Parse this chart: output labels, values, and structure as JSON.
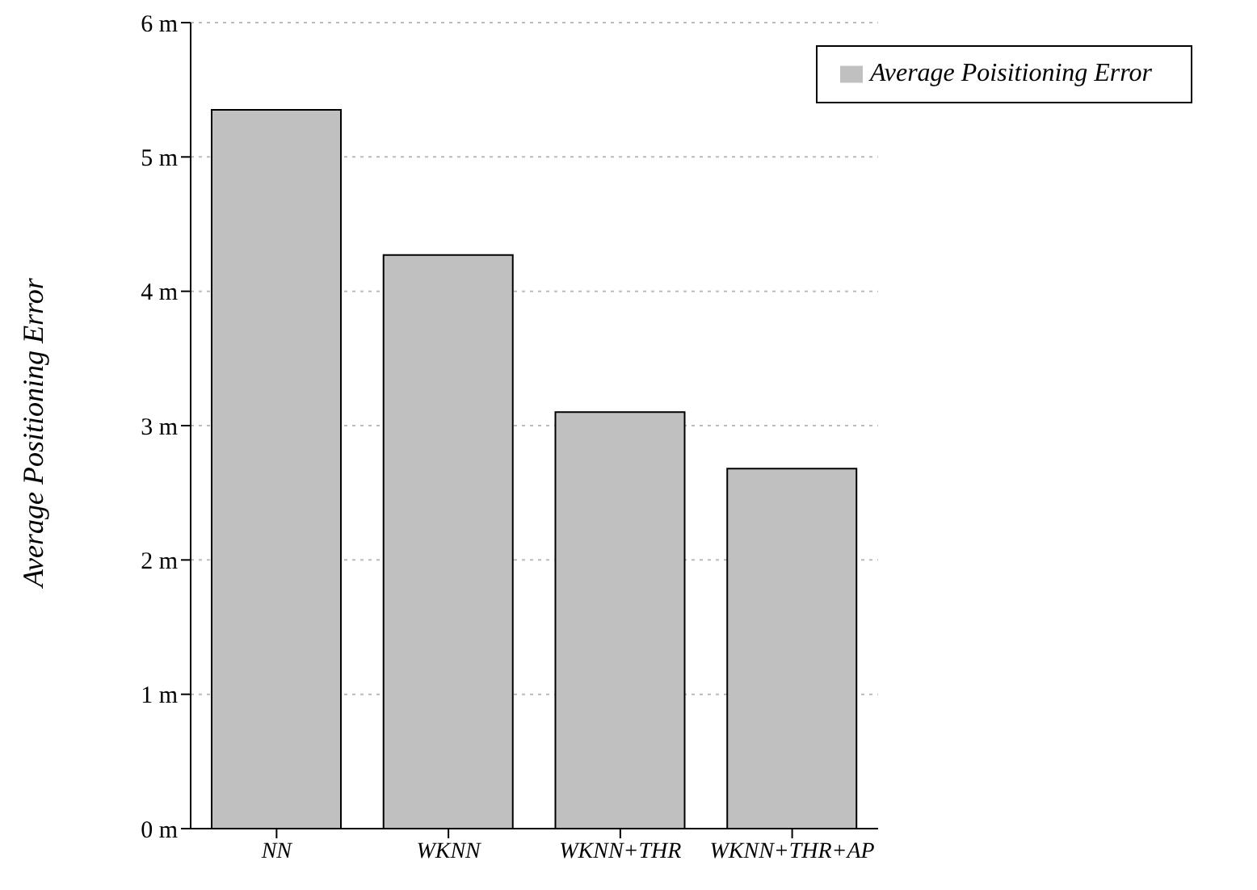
{
  "chart_data": {
    "type": "bar",
    "ylabel": "Average Positioning Error",
    "categories": [
      "NN",
      "WKNN",
      "WKNN+THR",
      "WKNN+THR+AP"
    ],
    "series": [
      {
        "name": "Average Poisitioning Error",
        "color": "#c0c0c0",
        "values": [
          5.35,
          4.27,
          3.1,
          2.68
        ]
      }
    ],
    "ylim": [
      0,
      6
    ],
    "yticks": [
      {
        "value": 0,
        "label": "0 m"
      },
      {
        "value": 1,
        "label": "1 m"
      },
      {
        "value": 2,
        "label": "2 m"
      },
      {
        "value": 3,
        "label": "3 m"
      },
      {
        "value": 4,
        "label": "4 m"
      },
      {
        "value": 5,
        "label": "5 m"
      },
      {
        "value": 6,
        "label": "6 m"
      }
    ],
    "grid": "y",
    "legend": "top right"
  }
}
